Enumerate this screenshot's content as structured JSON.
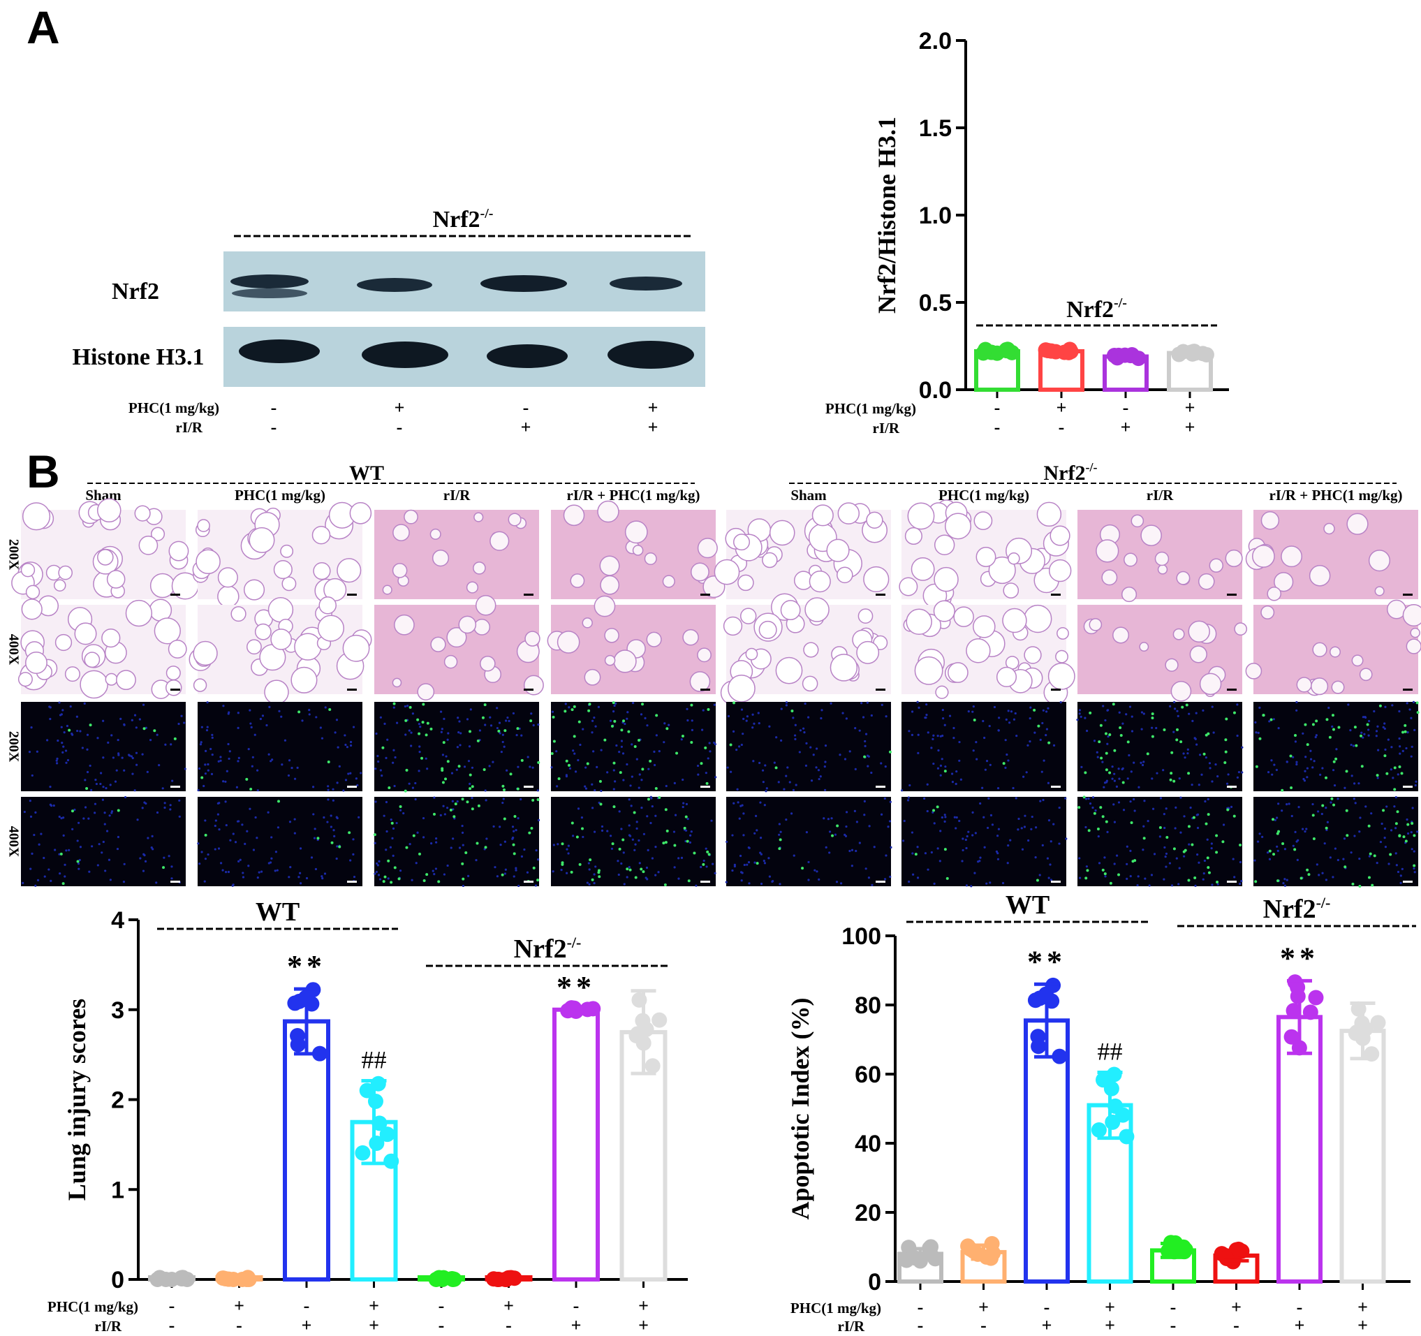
{
  "panels": {
    "a": "A",
    "b": "B"
  },
  "blot": {
    "header": "Nrf2",
    "header_sup": "-/-",
    "row_labels": [
      "Nrf2",
      "Histone H3.1"
    ]
  },
  "conditions": {
    "labels": [
      "PHC(1 mg/kg)",
      "rI/R"
    ],
    "phc": [
      "-",
      "+",
      "-",
      "+"
    ],
    "rir": [
      "-",
      "-",
      "+",
      "+"
    ],
    "phc8": [
      "-",
      "+",
      "-",
      "+",
      "-",
      "+",
      "-",
      "+"
    ],
    "rir8": [
      "-",
      "-",
      "+",
      "+",
      "-",
      "-",
      "+",
      "+"
    ]
  },
  "histology": {
    "groups": [
      {
        "name": "WT",
        "sup": ""
      },
      {
        "name": "Nrf2",
        "sup": "-/-"
      }
    ],
    "columns": [
      "Sham",
      "PHC(1 mg/kg)",
      "rI/R",
      "rI/R + PHC(1 mg/kg)",
      "Sham",
      "PHC(1 mg/kg)",
      "rI/R",
      "rI/R + PHC(1 mg/kg)"
    ],
    "rows": [
      "200X",
      "400X",
      "200X",
      "400X"
    ],
    "row_types": [
      "he",
      "he",
      "fluor",
      "fluor"
    ]
  },
  "chart_data": [
    {
      "id": "nrf2-ratio",
      "type": "bar",
      "ylabel": "Nrf2/Histone H3.1",
      "ylim": [
        0,
        2.0
      ],
      "yticks": [
        "0.0",
        "0.5",
        "1.0",
        "1.5",
        "2.0"
      ],
      "group_label": "Nrf2",
      "group_sup": "-/-",
      "values": [
        0.22,
        0.22,
        0.19,
        0.21
      ],
      "colors": [
        "#33dd33",
        "#ff4444",
        "#aa33dd",
        "#cccccc"
      ]
    },
    {
      "id": "lung-injury",
      "type": "bar",
      "ylabel": "Lung injury scores",
      "ylim": [
        0,
        4
      ],
      "yticks": [
        "0",
        "1",
        "2",
        "3",
        "4"
      ],
      "groups": [
        {
          "name": "WT",
          "sup": ""
        },
        {
          "name": "Nrf2",
          "sup": "-/-"
        }
      ],
      "values": [
        0,
        0,
        2.87,
        1.75,
        0,
        0,
        3.0,
        2.75
      ],
      "errors": [
        0,
        0,
        0.36,
        0.46,
        0,
        0,
        0,
        0.46
      ],
      "colors": [
        "#bbbbbb",
        "#ffb070",
        "#2233ee",
        "#22eeff",
        "#22ee22",
        "#ee1111",
        "#bb33ee",
        "#dddddd"
      ],
      "annotations": [
        "",
        "",
        "**",
        "##",
        "",
        "",
        "**",
        ""
      ]
    },
    {
      "id": "apoptotic-index",
      "type": "bar",
      "ylabel": "Apoptotic Index (%)",
      "ylim": [
        0,
        100
      ],
      "yticks": [
        "0",
        "20",
        "40",
        "60",
        "80",
        "100"
      ],
      "groups": [
        {
          "name": "WT",
          "sup": ""
        },
        {
          "name": "Nrf2",
          "sup": "-/-"
        }
      ],
      "values": [
        8,
        8.5,
        75.5,
        51,
        9,
        7.5,
        76.5,
        72.5
      ],
      "errors": [
        1.5,
        2,
        10.5,
        9.5,
        2,
        1.5,
        10.5,
        8
      ],
      "colors": [
        "#bbbbbb",
        "#ffb070",
        "#2233ee",
        "#22eeff",
        "#22ee22",
        "#ee1111",
        "#bb33ee",
        "#dddddd"
      ],
      "annotations": [
        "",
        "",
        "**",
        "##",
        "",
        "",
        "**",
        ""
      ]
    }
  ]
}
